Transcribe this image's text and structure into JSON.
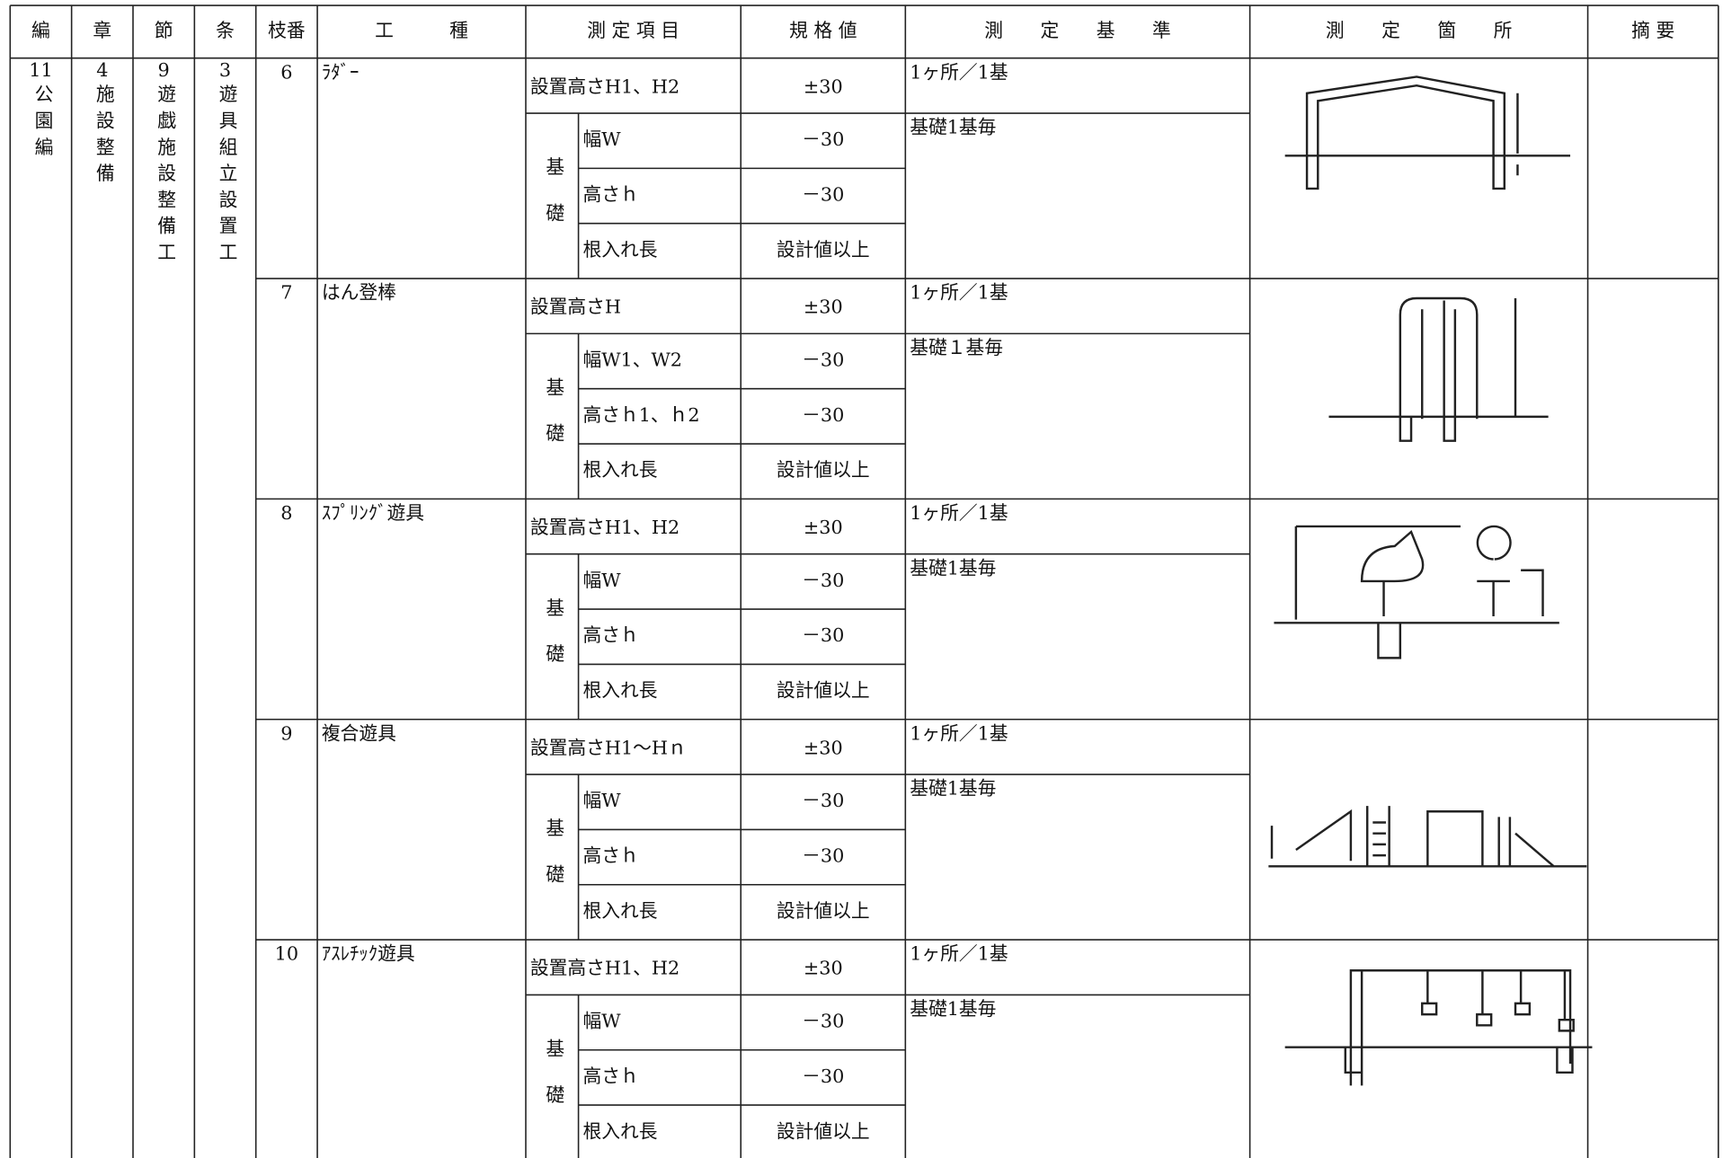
{
  "header": [
    "編",
    "章",
    "節",
    "条",
    "枝番",
    "工　　　種",
    "測 定 項 目",
    "規 格 値",
    "測　　定　　基　　準",
    "測　　定　　箇　　所",
    "摘 要"
  ],
  "classification": [
    {
      "number": "11",
      "name": "公園編"
    },
    {
      "number": "4",
      "name": "施設整備"
    },
    {
      "number": "9",
      "name": "遊戯施設整備工"
    },
    {
      "number": "3",
      "name": "遊具組立設置工"
    }
  ],
  "groups": [
    {
      "no": "6",
      "kind": "ﾗﾀﾞｰ",
      "height_item": "設置高さH1、H2",
      "height_spec": "±30",
      "height_standard": "1ヶ所／1基",
      "foundation_label": "基礎",
      "foundation_standard": "基礎1基毎",
      "items": [
        {
          "item": "幅W",
          "spec": "－30"
        },
        {
          "item": "高さｈ",
          "spec": "－30"
        },
        {
          "item": "根入れ長",
          "spec": "設計値以上"
        }
      ]
    },
    {
      "no": "7",
      "kind": "はん登棒",
      "height_item": "設置高さH",
      "height_spec": "±30",
      "height_standard": "1ヶ所／1基",
      "foundation_label": "基礎",
      "foundation_standard": "基礎１基毎",
      "items": [
        {
          "item": "幅W1、W2",
          "spec": "－30"
        },
        {
          "item": "高さｈ1、ｈ2",
          "spec": "－30"
        },
        {
          "item": "根入れ長",
          "spec": "設計値以上"
        }
      ]
    },
    {
      "no": "8",
      "kind": "ｽﾌﾟﾘﾝｸﾞ遊具",
      "height_item": "設置高さH1、H2",
      "height_spec": "±30",
      "height_standard": "1ヶ所／1基",
      "foundation_label": "基礎",
      "foundation_standard": "基礎1基毎",
      "items": [
        {
          "item": "幅W",
          "spec": "－30"
        },
        {
          "item": "高さｈ",
          "spec": "－30"
        },
        {
          "item": "根入れ長",
          "spec": "設計値以上"
        }
      ]
    },
    {
      "no": "9",
      "kind": "複合遊具",
      "height_item": "設置高さH1～Hｎ",
      "height_spec": "±30",
      "height_standard": "1ヶ所／1基",
      "foundation_label": "基礎",
      "foundation_standard": "基礎1基毎",
      "items": [
        {
          "item": "幅W",
          "spec": "－30"
        },
        {
          "item": "高さｈ",
          "spec": "－30"
        },
        {
          "item": "根入れ長",
          "spec": "設計値以上"
        }
      ]
    },
    {
      "no": "10",
      "kind": "ｱｽﾚﾁｯｸ遊具",
      "height_item": "設置高さH1、H2",
      "height_spec": "±30",
      "height_standard": "1ヶ所／1基",
      "foundation_label": "基礎",
      "foundation_standard": "基礎1基毎",
      "items": [
        {
          "item": "幅W",
          "spec": "－30"
        },
        {
          "item": "高さｈ",
          "spec": "－30"
        },
        {
          "item": "根入れ長",
          "spec": "設計値以上"
        }
      ]
    }
  ]
}
